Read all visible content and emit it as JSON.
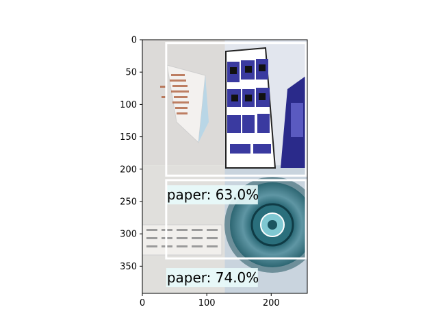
{
  "chart_data": {
    "type": "image_with_detections",
    "title": "",
    "xlabel": "",
    "ylabel": "",
    "xlim": [
      0,
      256
    ],
    "ylim": [
      392,
      0
    ],
    "xticks": [
      0,
      100,
      200
    ],
    "yticks": [
      0,
      50,
      100,
      150,
      200,
      250,
      300,
      350
    ],
    "grid": false,
    "mosaic_tiles": [
      {
        "x0": 0,
        "y0": 0,
        "x1": 128,
        "y1": 194,
        "content": "paper-tent-card",
        "bg": "#dcdad8"
      },
      {
        "x0": 128,
        "y0": 0,
        "x1": 256,
        "y1": 194,
        "content": "catalog-magazine",
        "bg": "#e2e6ee"
      },
      {
        "x0": 0,
        "y0": 194,
        "x1": 128,
        "y1": 392,
        "content": "paper-strip",
        "bg": "#e0dfdc"
      },
      {
        "x0": 128,
        "y0": 194,
        "x1": 256,
        "y1": 392,
        "content": "teal-glass-bowl",
        "bg": "#c9d4de"
      }
    ],
    "detections": [
      {
        "label": "paper: 63.0%",
        "x0": 37,
        "y0": 5,
        "x1": 254,
        "y1": 210
      },
      {
        "label": "paper: 74.0%",
        "x0": 37,
        "y0": 217,
        "x1": 254,
        "y1": 338
      }
    ],
    "colors": {
      "box": "#ffffff",
      "label_bg": "#e8fbfb",
      "axis": "#000000"
    }
  }
}
